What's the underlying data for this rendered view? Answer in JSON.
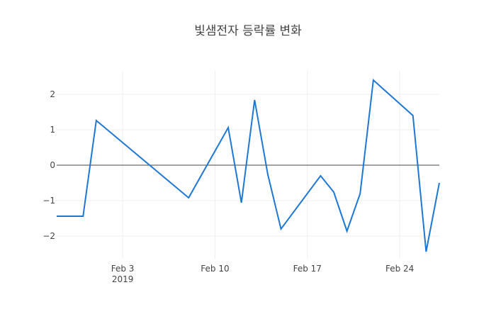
{
  "chart_data": {
    "type": "line",
    "title": "빛샘전자 등락률 변화",
    "x": [
      "2019-01-29",
      "2019-01-31",
      "2019-02-01",
      "2019-02-08",
      "2019-02-11",
      "2019-02-12",
      "2019-02-13",
      "2019-02-14",
      "2019-02-15",
      "2019-02-18",
      "2019-02-19",
      "2019-02-20",
      "2019-02-21",
      "2019-02-22",
      "2019-02-25",
      "2019-02-26",
      "2019-02-27"
    ],
    "series": [
      {
        "name": "등락률",
        "color": "#1f77d4",
        "values": [
          -1.44,
          -1.44,
          1.26,
          -0.92,
          1.06,
          -1.06,
          1.84,
          -0.26,
          -1.8,
          -0.3,
          -0.76,
          -1.86,
          -0.8,
          2.4,
          1.4,
          -2.44,
          -0.5
        ]
      }
    ],
    "xlim": [
      "2019-01-29",
      "2019-02-27"
    ],
    "xticks": [
      {
        "value": "2019-02-03",
        "label": "Feb 3\n2019"
      },
      {
        "value": "2019-02-10",
        "label": "Feb 10"
      },
      {
        "value": "2019-02-17",
        "label": "Feb 17"
      },
      {
        "value": "2019-02-24",
        "label": "Feb 24"
      }
    ],
    "ylim": [
      -2.64,
      2.66
    ],
    "yticks": [
      {
        "value": -2,
        "label": "−2"
      },
      {
        "value": -1,
        "label": "−1"
      },
      0,
      1,
      2
    ],
    "grid": true,
    "zeroline": true
  }
}
